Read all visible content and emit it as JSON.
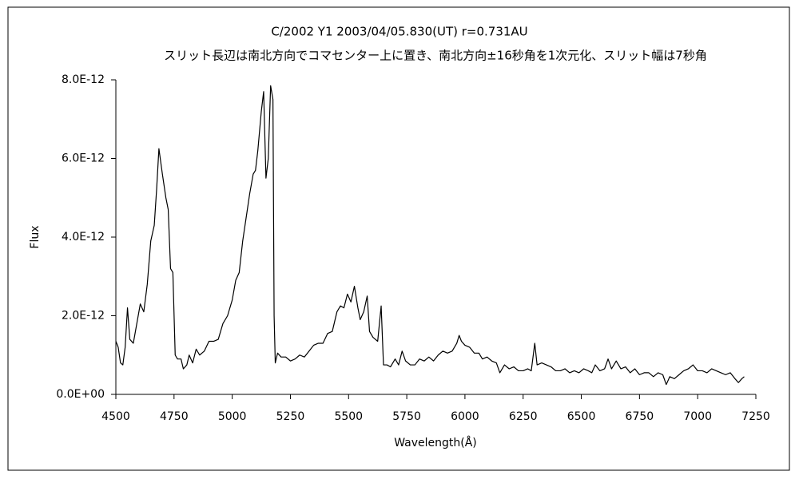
{
  "chart_data": {
    "type": "line",
    "title": "C/2002 Y1  2003/04/05.830(UT)    r=0.731AU",
    "subtitle": "スリット長辺は南北方向でコマセンター上に置き、南北方向±16秒角を1次元化、スリット幅は7秒角",
    "x_label": "Wavelength(Å)",
    "y_label": "Flux",
    "color": "#000000",
    "xlim": [
      4500,
      7250
    ],
    "xticks": [
      4500,
      4750,
      5000,
      5250,
      5500,
      5750,
      6000,
      6250,
      6500,
      6750,
      7000,
      7250
    ],
    "ylim": [
      0,
      8e-12
    ],
    "yticks": [
      {
        "value": 0,
        "label": "0.0E+00"
      },
      {
        "value": 2e-12,
        "label": "2.0E-12"
      },
      {
        "value": 4e-12,
        "label": "4.0E-12"
      },
      {
        "value": 6e-12,
        "label": "6.0E-12"
      },
      {
        "value": 8e-12,
        "label": "8.0E-12"
      }
    ],
    "x": [
      4500,
      4510,
      4520,
      4530,
      4540,
      4550,
      4560,
      4575,
      4590,
      4605,
      4620,
      4635,
      4650,
      4665,
      4675,
      4685,
      4700,
      4715,
      4725,
      4735,
      4745,
      4755,
      4765,
      4780,
      4790,
      4805,
      4815,
      4830,
      4845,
      4860,
      4880,
      4900,
      4920,
      4940,
      4960,
      4980,
      5000,
      5015,
      5030,
      5045,
      5060,
      5075,
      5090,
      5100,
      5110,
      5125,
      5135,
      5145,
      5155,
      5165,
      5175,
      5180,
      5185,
      5195,
      5210,
      5230,
      5250,
      5270,
      5290,
      5310,
      5330,
      5350,
      5370,
      5390,
      5410,
      5430,
      5450,
      5465,
      5480,
      5495,
      5510,
      5525,
      5540,
      5550,
      5565,
      5580,
      5590,
      5605,
      5625,
      5640,
      5650,
      5665,
      5680,
      5700,
      5715,
      5730,
      5745,
      5765,
      5785,
      5805,
      5825,
      5845,
      5865,
      5885,
      5905,
      5925,
      5945,
      5965,
      5975,
      5985,
      6000,
      6020,
      6040,
      6060,
      6075,
      6095,
      6115,
      6135,
      6150,
      6170,
      6190,
      6210,
      6230,
      6250,
      6270,
      6285,
      6300,
      6310,
      6330,
      6350,
      6370,
      6390,
      6410,
      6430,
      6450,
      6470,
      6490,
      6510,
      6530,
      6545,
      6560,
      6580,
      6600,
      6615,
      6630,
      6650,
      6670,
      6690,
      6710,
      6730,
      6750,
      6770,
      6790,
      6810,
      6830,
      6850,
      6865,
      6880,
      6900,
      6920,
      6940,
      6960,
      6980,
      7000,
      7020,
      7040,
      7060,
      7080,
      7100,
      7120,
      7140,
      7160,
      7175,
      7190,
      7200
    ],
    "values": [
      1.35e-12,
      1.2e-12,
      8e-13,
      7.5e-13,
      1.2e-12,
      2.2e-12,
      1.4e-12,
      1.3e-12,
      1.8e-12,
      2.3e-12,
      2.1e-12,
      2.8e-12,
      3.9e-12,
      4.3e-12,
      5.2e-12,
      6.25e-12,
      5.6e-12,
      5e-12,
      4.7e-12,
      3.2e-12,
      3.1e-12,
      1e-12,
      9e-13,
      9e-13,
      6.5e-13,
      7.5e-13,
      1e-12,
      8e-13,
      1.15e-12,
      1e-12,
      1.1e-12,
      1.35e-12,
      1.35e-12,
      1.4e-12,
      1.8e-12,
      2e-12,
      2.4e-12,
      2.9e-12,
      3.1e-12,
      3.9e-12,
      4.5e-12,
      5.1e-12,
      5.6e-12,
      5.7e-12,
      6.2e-12,
      7.2e-12,
      7.7e-12,
      5.5e-12,
      6e-12,
      7.85e-12,
      7.5e-12,
      2e-12,
      8e-13,
      1.05e-12,
      9.5e-13,
      9.5e-13,
      8.5e-13,
      9e-13,
      1e-12,
      9.5e-13,
      1.1e-12,
      1.25e-12,
      1.3e-12,
      1.3e-12,
      1.55e-12,
      1.6e-12,
      2.1e-12,
      2.25e-12,
      2.2e-12,
      2.55e-12,
      2.35e-12,
      2.75e-12,
      2.2e-12,
      1.9e-12,
      2.1e-12,
      2.5e-12,
      1.6e-12,
      1.45e-12,
      1.35e-12,
      2.25e-12,
      7.5e-13,
      7.5e-13,
      7e-13,
      9e-13,
      7.5e-13,
      1.1e-12,
      8.5e-13,
      7.5e-13,
      7.5e-13,
      9e-13,
      8.5e-13,
      9.5e-13,
      8.5e-13,
      1e-12,
      1.1e-12,
      1.05e-12,
      1.1e-12,
      1.3e-12,
      1.5e-12,
      1.35e-12,
      1.25e-12,
      1.2e-12,
      1.05e-12,
      1.05e-12,
      9e-13,
      9.5e-13,
      8.5e-13,
      8e-13,
      5.5e-13,
      7.5e-13,
      6.5e-13,
      7e-13,
      6e-13,
      6e-13,
      6.5e-13,
      6e-13,
      1.3e-12,
      7.5e-13,
      8e-13,
      7.5e-13,
      7e-13,
      6e-13,
      6e-13,
      6.5e-13,
      5.5e-13,
      6e-13,
      5.5e-13,
      6.5e-13,
      6e-13,
      5.5e-13,
      7.5e-13,
      6e-13,
      6.5e-13,
      9e-13,
      6.5e-13,
      8.5e-13,
      6.5e-13,
      7e-13,
      5.5e-13,
      6.5e-13,
      5e-13,
      5.5e-13,
      5.5e-13,
      4.5e-13,
      5.5e-13,
      5e-13,
      2.5e-13,
      4.5e-13,
      4e-13,
      5e-13,
      6e-13,
      6.5e-13,
      7.5e-13,
      6e-13,
      6e-13,
      5.5e-13,
      6.5e-13,
      6e-13,
      5.5e-13,
      5e-13,
      5.5e-13,
      4e-13,
      3e-13,
      4e-13,
      4.5e-13
    ]
  }
}
